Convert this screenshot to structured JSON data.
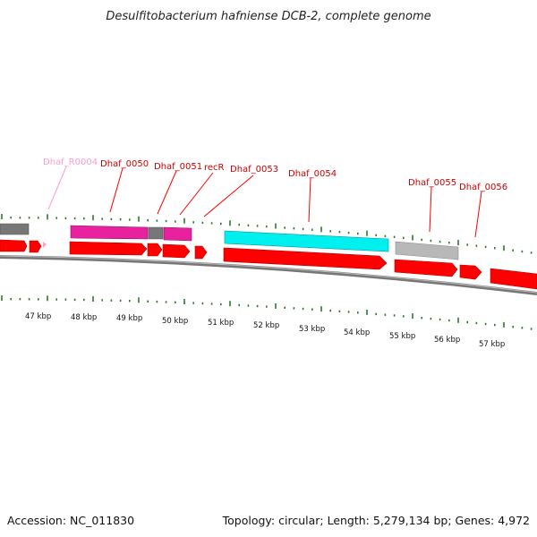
{
  "title": "Desulfitobacterium hafniense DCB-2, complete genome",
  "accession_text": "Accession: NC_011830",
  "summary_text": "Topology: circular; Length: 5,279,134 bp; Genes: 4,972",
  "colors": {
    "red": "#ff0000",
    "magenta": "#e8219e",
    "pink": "#ff9ccf",
    "cyan": "#00f0f0",
    "gray_dark": "#777777",
    "gray_light": "#b8b8b8",
    "tick_green": "#2a7a2a",
    "backbone": "#777777"
  },
  "scale_labels": [
    "47 kbp",
    "48 kbp",
    "49 kbp",
    "50 kbp",
    "51 kbp",
    "52 kbp",
    "53 kbp",
    "54 kbp",
    "55 kbp",
    "56 kbp",
    "57 kbp"
  ],
  "gene_labels": [
    {
      "text": "Dhaf_R0004",
      "color": "pink"
    },
    {
      "text": "Dhaf_0050",
      "color": "red"
    },
    {
      "text": "Dhaf_0051",
      "color": "red"
    },
    {
      "text": "recR",
      "color": "red"
    },
    {
      "text": "Dhaf_0053",
      "color": "red"
    },
    {
      "text": "Dhaf_0054",
      "color": "red"
    },
    {
      "text": "Dhaf_0055",
      "color": "red"
    },
    {
      "text": "Dhaf_0056",
      "color": "red"
    }
  ]
}
